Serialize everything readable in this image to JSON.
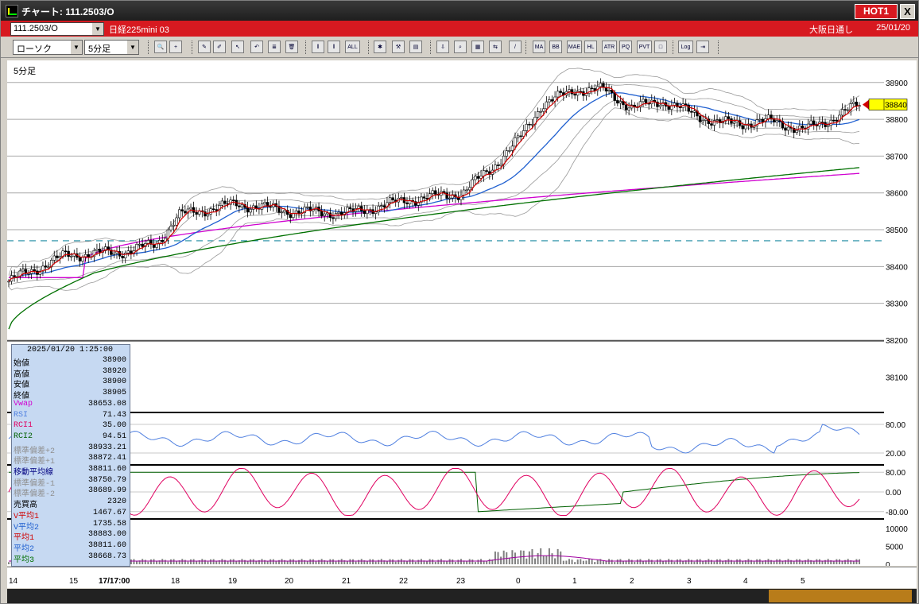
{
  "window": {
    "title": "チャート: 111.2503/O",
    "hot_badge": "HOT1",
    "close_label": "X"
  },
  "symbol_bar": {
    "symbol": "111.2503/O",
    "name": "日経225mini 03",
    "market": "大阪日通し",
    "date": "25/01/20"
  },
  "toolbar": {
    "chart_type": "ローソク",
    "timeframe": "5分足",
    "buttons": [
      {
        "name": "zoom-icon",
        "label": "🔍"
      },
      {
        "name": "crosshair-icon",
        "label": "+"
      },
      {
        "name": "pencil-icon",
        "label": "✎"
      },
      {
        "name": "draw-tool-icon",
        "label": "✐"
      },
      {
        "name": "pointer-icon",
        "label": "↖"
      },
      {
        "name": "undo-icon",
        "label": "↶"
      },
      {
        "name": "document-icon",
        "label": "≣"
      },
      {
        "name": "trash-icon",
        "label": "🗑"
      },
      {
        "name": "candle-mode-icon",
        "label": "‖"
      },
      {
        "name": "candle-mode-2-icon",
        "label": "‖"
      },
      {
        "name": "all-button",
        "label": "ALL"
      },
      {
        "name": "settings-icon",
        "label": "✱"
      },
      {
        "name": "wrench-icon",
        "label": "⚒"
      },
      {
        "name": "color-icon",
        "label": "▤"
      },
      {
        "name": "arrow-down-icon",
        "label": "⇩"
      },
      {
        "name": "search-icon",
        "label": "⌕"
      },
      {
        "name": "indicator-icon",
        "label": "▦"
      },
      {
        "name": "compare-icon",
        "label": "⇆"
      },
      {
        "name": "disabled-icon",
        "label": "/"
      },
      {
        "name": "ma-button",
        "label": "MA"
      },
      {
        "name": "bb-button",
        "label": "BB"
      },
      {
        "name": "mae-button",
        "label": "MAE"
      },
      {
        "name": "hl-button",
        "label": "HL"
      },
      {
        "name": "atr-button",
        "label": "ATR"
      },
      {
        "name": "pq-button",
        "label": "PQ"
      },
      {
        "name": "pvt-button",
        "label": "PVT"
      },
      {
        "name": "window-icon",
        "label": "□"
      },
      {
        "name": "log-button",
        "label": "Log"
      },
      {
        "name": "export-icon",
        "label": "⇥"
      }
    ]
  },
  "main_chart": {
    "timeframe_label": "5分足",
    "y_ticks": [
      "38900",
      "38800",
      "38700",
      "38600",
      "38500",
      "38400",
      "38300",
      "38200",
      "38100"
    ],
    "current_price_tag": "38840"
  },
  "rsi_panel": {
    "y_ticks": [
      "80.00",
      "20.00"
    ]
  },
  "rci_panel": {
    "y_ticks": [
      "80.00",
      "0.00",
      "-80.00"
    ]
  },
  "volume_panel": {
    "y_ticks": [
      "10000",
      "5000",
      "0"
    ]
  },
  "x_axis": {
    "labels": [
      "14",
      "15",
      "17/17:00",
      "18",
      "19",
      "20",
      "21",
      "22",
      "23",
      "0",
      "1",
      "2",
      "3",
      "4",
      "5"
    ]
  },
  "info_panel": {
    "datetime": "2025/01/20  1:25:00",
    "rows": [
      {
        "key": "始値",
        "value": "38900",
        "color": "#000000"
      },
      {
        "key": "高値",
        "value": "38920",
        "color": "#000000"
      },
      {
        "key": "安値",
        "value": "38900",
        "color": "#000000"
      },
      {
        "key": "終値",
        "value": "38905",
        "color": "#000000"
      },
      {
        "key": "Vwap",
        "value": "38653.08",
        "color": "#d000d0"
      },
      {
        "key": "RSI",
        "value": "71.43",
        "color": "#5080e0"
      },
      {
        "key": "RCI1",
        "value": "35.00",
        "color": "#e00060"
      },
      {
        "key": "RCI2",
        "value": "94.51",
        "color": "#006000"
      },
      {
        "key": "標準偏差+2",
        "value": "38933.21",
        "color": "#909090"
      },
      {
        "key": "標準偏差+1",
        "value": "38872.41",
        "color": "#909090"
      },
      {
        "key": "移動平均線",
        "value": "38811.60",
        "color": "#000080"
      },
      {
        "key": "標準偏差-1",
        "value": "38750.79",
        "color": "#909090"
      },
      {
        "key": "標準偏差-2",
        "value": "38689.99",
        "color": "#909090"
      },
      {
        "key": "売買高",
        "value": "2320",
        "color": "#000000"
      },
      {
        "key": "V平均1",
        "value": "1467.67",
        "color": "#d00000"
      },
      {
        "key": "V平均2",
        "value": "1735.58",
        "color": "#2060d0"
      },
      {
        "key": "平均1",
        "value": "38883.00",
        "color": "#d00000"
      },
      {
        "key": "平均2",
        "value": "38811.60",
        "color": "#2060d0"
      },
      {
        "key": "平均3",
        "value": "38668.73",
        "color": "#007000"
      }
    ]
  },
  "chart_data": {
    "type": "line",
    "price_axis": {
      "range": [
        38200,
        38960
      ],
      "ticks": [
        38900,
        38800,
        38700,
        38600,
        38500,
        38400,
        38300,
        38200,
        38100
      ]
    },
    "reference_level": 38470,
    "close_anchors": {
      "x_session": [
        0,
        1,
        2,
        2.6,
        3,
        4,
        5,
        6,
        7,
        8,
        8.5,
        9,
        9.4,
        10,
        10.5,
        11,
        11.5,
        12,
        12.5,
        13,
        13.5,
        14,
        14.5,
        15
      ],
      "close": [
        38360,
        38430,
        38440,
        38460,
        38540,
        38570,
        38550,
        38545,
        38580,
        38600,
        38665,
        38745,
        38840,
        38880,
        38880,
        38830,
        38850,
        38820,
        38790,
        38790,
        38795,
        38770,
        38800,
        38840
      ]
    },
    "overlays": {
      "avg1_red": "close smoothed",
      "avg2_blue_end": 38811.6,
      "avg3_green_end": 38668.73,
      "vwap_end": 38653.08
    },
    "colors": {
      "up": "#ffffff",
      "down": "#000000",
      "avg1": "#d00000",
      "avg2": "#2060d0",
      "avg3": "#007000",
      "vwap": "#d000d0",
      "bands": "#9a9a9a",
      "rsi": "#5080e0",
      "rci1": "#e00060",
      "rci2": "#006000"
    }
  }
}
